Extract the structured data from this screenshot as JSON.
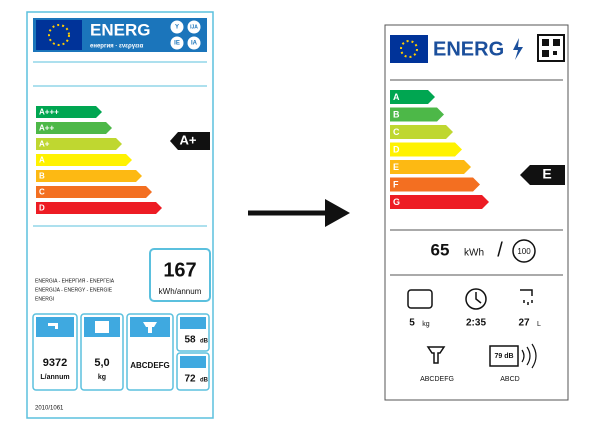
{
  "old_label": {
    "header": "ENERG",
    "header_sub": "енергия · ενεργεια",
    "languages": [
      "Y",
      "IJA",
      "IE",
      "IA"
    ],
    "classes": [
      {
        "label": "A+++",
        "color": "#00a651"
      },
      {
        "label": "A++",
        "color": "#4db848"
      },
      {
        "label": "A+",
        "color": "#bfd730"
      },
      {
        "label": "A",
        "color": "#fff200"
      },
      {
        "label": "B",
        "color": "#fdb913"
      },
      {
        "label": "C",
        "color": "#f36f21"
      },
      {
        "label": "D",
        "color": "#ed1c24"
      }
    ],
    "rating": "A+",
    "consumption": {
      "value": "167",
      "unit": "kWh/annum"
    },
    "language_lines": [
      "ENERGIA - ЕНЕРГИЯ - ΕΝΕΡΓΕΙΑ",
      "ENERGIJA - ENERGY - ENERGIE",
      "ENERGI"
    ],
    "water": {
      "value": "9372",
      "unit": "L/annum"
    },
    "capacity": {
      "value": "5,0",
      "unit": "kg"
    },
    "spin_class": "ABCDEFG",
    "noise": [
      {
        "value": "58",
        "unit": "dB"
      },
      {
        "value": "72",
        "unit": "dB"
      }
    ],
    "regulation": "2010/1061"
  },
  "new_label": {
    "header": "ENERG",
    "classes": [
      {
        "label": "A",
        "color": "#00a651"
      },
      {
        "label": "B",
        "color": "#4db848"
      },
      {
        "label": "C",
        "color": "#bfd730"
      },
      {
        "label": "D",
        "color": "#fff200"
      },
      {
        "label": "E",
        "color": "#fdb913"
      },
      {
        "label": "F",
        "color": "#f36f21"
      },
      {
        "label": "G",
        "color": "#ed1c24"
      }
    ],
    "rating": "E",
    "consumption": {
      "value": "65",
      "unit": "kWh",
      "separator": "/",
      "cycles": "100"
    },
    "capacity": {
      "value": "5",
      "unit": "kg"
    },
    "duration": "2:35",
    "water": {
      "value": "27",
      "unit": "L"
    },
    "spin_class": "ABCDEFG",
    "noise": "79 dB",
    "noise_class": "ABCD"
  }
}
